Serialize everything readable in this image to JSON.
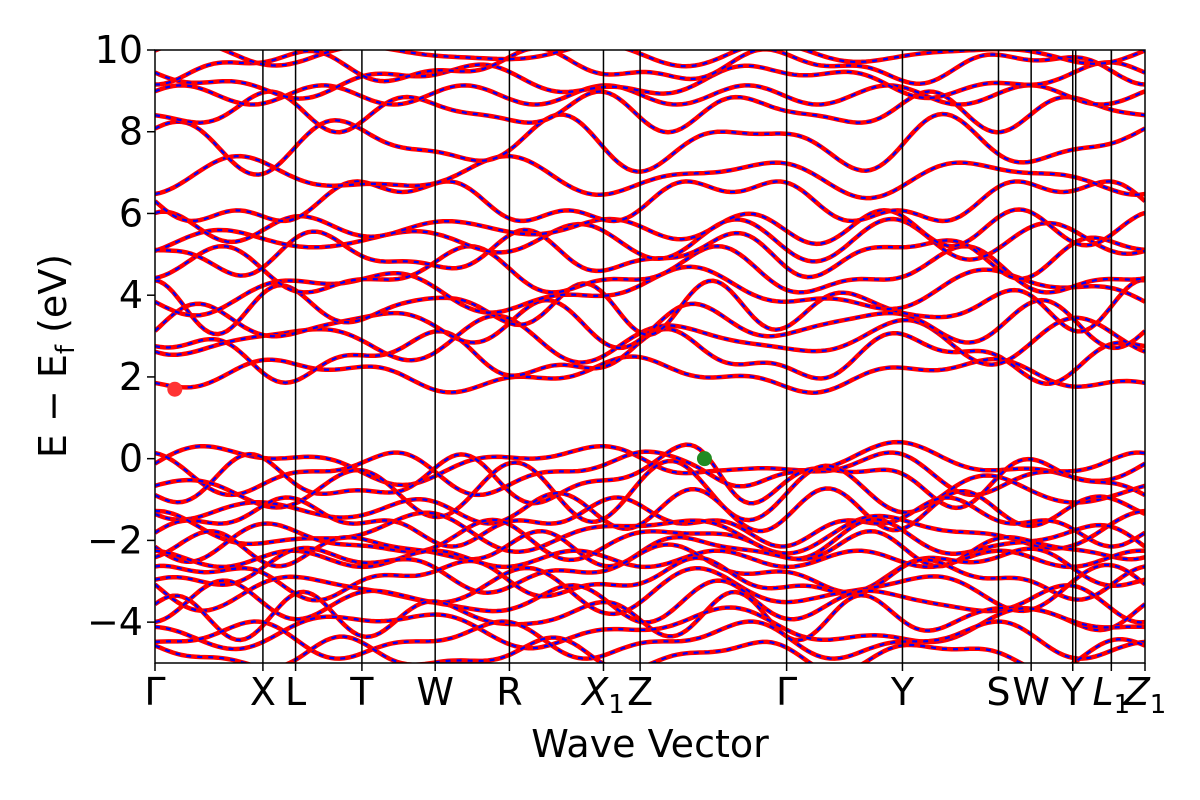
{
  "chart_data": {
    "type": "line",
    "xlabel": "Wave Vector",
    "ylabel_parts": {
      "main": "E − E",
      "sub": "f",
      "unit": " (eV)"
    },
    "ylim": [
      -5,
      10
    ],
    "yticks": [
      {
        "value": 10,
        "label": "10"
      },
      {
        "value": 8,
        "label": "8"
      },
      {
        "value": 6,
        "label": "6"
      },
      {
        "value": 4,
        "label": "4"
      },
      {
        "value": 2,
        "label": "2"
      },
      {
        "value": 0,
        "label": "0"
      },
      {
        "value": -2,
        "label": "−2"
      },
      {
        "value": -4,
        "label": "−4"
      }
    ],
    "xlim": [
      0,
      1
    ],
    "kpoints": [
      {
        "pos": 0.0,
        "label": "Γ"
      },
      {
        "pos": 0.109,
        "label": "X"
      },
      {
        "pos": 0.142,
        "label": "L"
      },
      {
        "pos": 0.209,
        "label": "T"
      },
      {
        "pos": 0.283,
        "label": "W"
      },
      {
        "pos": 0.358,
        "label": "R"
      },
      {
        "pos": 0.453,
        "label": "X",
        "sub": "1"
      },
      {
        "pos": 0.49,
        "label": "Z"
      },
      {
        "pos": 0.638,
        "label": "Γ"
      },
      {
        "pos": 0.755,
        "label": "Y"
      },
      {
        "pos": 0.852,
        "label": "S"
      },
      {
        "pos": 0.885,
        "label": "W"
      },
      {
        "pos": 0.927,
        "label": "Y"
      },
      {
        "pos": 0.966,
        "label": "L",
        "sub": "1"
      },
      {
        "pos": 1.0,
        "label": "Z",
        "sub": "1"
      }
    ],
    "extra_kpoint_lines": [
      0.93,
      0.966
    ],
    "series_styles": [
      {
        "color": "#ff0000",
        "style": "solid",
        "width": 4.5
      },
      {
        "color": "#0000ff",
        "style": "dashed",
        "width": 2.2
      }
    ],
    "markers": [
      {
        "x": 0.02,
        "y": 1.7,
        "color": "#ff3333"
      },
      {
        "x": 0.555,
        "y": 0.0,
        "color": "#228b22"
      }
    ],
    "valence_bands": [
      {
        "base": -0.12,
        "amp": 0.35
      },
      {
        "base": -0.35,
        "amp": 0.4
      },
      {
        "base": -0.55,
        "amp": 0.45
      },
      {
        "base": -0.8,
        "amp": 0.5
      },
      {
        "base": -1.25,
        "amp": 0.35
      },
      {
        "base": -1.55,
        "amp": 0.4
      },
      {
        "base": -1.8,
        "amp": 0.35
      },
      {
        "base": -2.0,
        "amp": 0.35
      },
      {
        "base": -2.2,
        "amp": 0.3
      },
      {
        "base": -2.45,
        "amp": 0.35
      },
      {
        "base": -2.7,
        "amp": 0.4
      },
      {
        "base": -2.95,
        "amp": 0.35
      },
      {
        "base": -3.2,
        "amp": 0.4
      },
      {
        "base": -3.5,
        "amp": 0.35
      },
      {
        "base": -3.85,
        "amp": 0.4
      },
      {
        "base": -4.15,
        "amp": 0.35
      },
      {
        "base": -4.45,
        "amp": 0.35
      },
      {
        "base": -4.8,
        "amp": 0.3
      }
    ],
    "conduction_bands": [
      {
        "base": 2.05,
        "amp": 0.3
      },
      {
        "base": 2.5,
        "amp": 0.45
      },
      {
        "base": 2.9,
        "amp": 0.4
      },
      {
        "base": 3.3,
        "amp": 0.4
      },
      {
        "base": 3.7,
        "amp": 0.45
      },
      {
        "base": 4.1,
        "amp": 0.4
      },
      {
        "base": 4.55,
        "amp": 0.45
      },
      {
        "base": 5.0,
        "amp": 0.4
      },
      {
        "base": 5.35,
        "amp": 0.35
      },
      {
        "base": 5.65,
        "amp": 0.3
      },
      {
        "base": 6.3,
        "amp": 0.45
      },
      {
        "base": 6.9,
        "amp": 0.35
      },
      {
        "base": 7.7,
        "amp": 0.5
      },
      {
        "base": 8.5,
        "amp": 0.35
      },
      {
        "base": 8.9,
        "amp": 0.3
      },
      {
        "base": 9.25,
        "amp": 0.3
      },
      {
        "base": 9.6,
        "amp": 0.3
      },
      {
        "base": 9.9,
        "amp": 0.2
      }
    ]
  }
}
